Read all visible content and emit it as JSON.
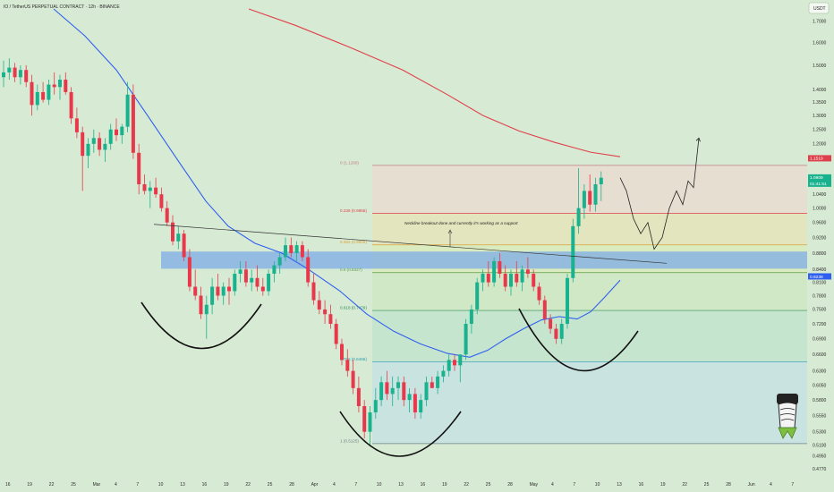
{
  "header": {
    "title": "IO / TetherUS PERPETUAL CONTRACT · 12h · BINANCE",
    "currency": "USDT"
  },
  "colors": {
    "background": "#d7ead3",
    "up_candle": "#19b28f",
    "down_candle": "#e8394c",
    "ma_red": "#e0404a",
    "ma_blue": "#2f5ff0",
    "demand_zone": "#7aa9e6",
    "curve": "#111111"
  },
  "chart_data": {
    "type": "candlestick",
    "symbol": "IO / TetherUS PERPETUAL CONTRACT",
    "interval": "12h",
    "exchange": "BINANCE",
    "y_axis": {
      "scale": "log",
      "ticks": [
        "1.7000",
        "1.6000",
        "1.5000",
        "1.4000",
        "1.3500",
        "1.3000",
        "1.2500",
        "1.2000",
        "1.1500",
        "1.0400",
        "1.0000",
        "0.9600",
        "0.9200",
        "0.8800",
        "0.8400",
        "0.8100",
        "0.7800",
        "0.7500",
        "0.7200",
        "0.6900",
        "0.6600",
        "0.6300",
        "0.6050",
        "0.5800",
        "0.5550",
        "0.5300",
        "0.5100",
        "0.4950",
        "0.4770"
      ]
    },
    "x_axis": {
      "ticks": [
        "16",
        "19",
        "22",
        "25",
        "Mar",
        "4",
        "7",
        "10",
        "13",
        "16",
        "19",
        "22",
        "25",
        "28",
        "Apr",
        "4",
        "7",
        "10",
        "13",
        "16",
        "19",
        "22",
        "25",
        "28",
        "May",
        "4",
        "7",
        "10",
        "13",
        "16",
        "19",
        "22",
        "25",
        "28",
        "Jun",
        "4",
        "7"
      ]
    },
    "price_tags": [
      {
        "label": "1.1519",
        "value": 1.1519,
        "color": "#e0404a"
      },
      {
        "label": "1.0909",
        "value": 1.0909,
        "color": "#19b28f",
        "sub": "01:41:51"
      },
      {
        "label": "0.8238",
        "value": 0.8238,
        "color": "#2f5ff0"
      }
    ],
    "fib_levels": [
      {
        "label": "0 (1.1290)",
        "value": 1.129,
        "color": "#c27e84"
      },
      {
        "label": "0.236 (0.9855)",
        "value": 0.9855,
        "color": "#e0404a"
      },
      {
        "label": "0.382 (0.9009)",
        "value": 0.9009,
        "color": "#d9a43a"
      },
      {
        "label": "0.5 (0.8327)",
        "value": 0.8327,
        "color": "#5b9b44"
      },
      {
        "label": "0.618 (0.7479)",
        "value": 0.7479,
        "color": "#2e8b57"
      },
      {
        "label": "0.786 (0.6465)",
        "value": 0.6465,
        "color": "#2a9bb0"
      },
      {
        "label": "1 (0.5125)",
        "value": 0.5125,
        "color": "#6f7f86"
      }
    ],
    "demand_zone": {
      "low": 0.842,
      "high": 0.884
    },
    "annotations": [
      "Neckline breakout done and currently it's working as a support"
    ],
    "candles": [
      [
        1.45,
        1.52,
        1.41,
        1.47
      ],
      [
        1.47,
        1.53,
        1.44,
        1.49
      ],
      [
        1.49,
        1.51,
        1.43,
        1.45
      ],
      [
        1.45,
        1.5,
        1.42,
        1.48
      ],
      [
        1.48,
        1.5,
        1.41,
        1.43
      ],
      [
        1.43,
        1.46,
        1.3,
        1.34
      ],
      [
        1.34,
        1.42,
        1.32,
        1.39
      ],
      [
        1.39,
        1.43,
        1.35,
        1.36
      ],
      [
        1.36,
        1.44,
        1.34,
        1.42
      ],
      [
        1.42,
        1.47,
        1.38,
        1.41
      ],
      [
        1.41,
        1.46,
        1.36,
        1.44
      ],
      [
        1.44,
        1.47,
        1.38,
        1.39
      ],
      [
        1.39,
        1.41,
        1.27,
        1.29
      ],
      [
        1.29,
        1.33,
        1.22,
        1.24
      ],
      [
        1.24,
        1.26,
        1.05,
        1.16
      ],
      [
        1.16,
        1.22,
        1.12,
        1.2
      ],
      [
        1.2,
        1.25,
        1.17,
        1.22
      ],
      [
        1.22,
        1.24,
        1.16,
        1.18
      ],
      [
        1.18,
        1.22,
        1.14,
        1.2
      ],
      [
        1.2,
        1.27,
        1.18,
        1.25
      ],
      [
        1.25,
        1.29,
        1.21,
        1.23
      ],
      [
        1.23,
        1.27,
        1.2,
        1.26
      ],
      [
        1.26,
        1.43,
        1.24,
        1.38
      ],
      [
        1.38,
        1.42,
        1.15,
        1.17
      ],
      [
        1.17,
        1.2,
        1.04,
        1.07
      ],
      [
        1.07,
        1.1,
        1.04,
        1.05
      ],
      [
        1.05,
        1.08,
        1.0,
        1.06
      ],
      [
        1.06,
        1.09,
        1.03,
        1.04
      ],
      [
        1.04,
        1.06,
        0.99,
        1.0
      ],
      [
        1.0,
        1.02,
        0.95,
        0.96
      ],
      [
        0.96,
        0.98,
        0.9,
        0.91
      ],
      [
        0.91,
        0.95,
        0.89,
        0.93
      ],
      [
        0.93,
        0.94,
        0.86,
        0.87
      ],
      [
        0.87,
        0.89,
        0.79,
        0.8
      ],
      [
        0.8,
        0.84,
        0.77,
        0.78
      ],
      [
        0.78,
        0.8,
        0.73,
        0.74
      ],
      [
        0.74,
        0.78,
        0.69,
        0.76
      ],
      [
        0.76,
        0.82,
        0.74,
        0.8
      ],
      [
        0.8,
        0.83,
        0.77,
        0.78
      ],
      [
        0.78,
        0.81,
        0.76,
        0.8
      ],
      [
        0.8,
        0.82,
        0.76,
        0.79
      ],
      [
        0.79,
        0.84,
        0.78,
        0.83
      ],
      [
        0.83,
        0.86,
        0.81,
        0.84
      ],
      [
        0.84,
        0.86,
        0.8,
        0.81
      ],
      [
        0.81,
        0.84,
        0.79,
        0.82
      ],
      [
        0.82,
        0.85,
        0.79,
        0.8
      ],
      [
        0.8,
        0.82,
        0.78,
        0.79
      ],
      [
        0.79,
        0.84,
        0.78,
        0.83
      ],
      [
        0.83,
        0.86,
        0.81,
        0.85
      ],
      [
        0.85,
        0.88,
        0.83,
        0.87
      ],
      [
        0.87,
        0.92,
        0.86,
        0.9
      ],
      [
        0.9,
        0.92,
        0.87,
        0.88
      ],
      [
        0.88,
        0.91,
        0.86,
        0.9
      ],
      [
        0.9,
        0.91,
        0.86,
        0.87
      ],
      [
        0.87,
        0.89,
        0.8,
        0.81
      ],
      [
        0.81,
        0.83,
        0.76,
        0.77
      ],
      [
        0.77,
        0.79,
        0.74,
        0.75
      ],
      [
        0.75,
        0.77,
        0.72,
        0.74
      ],
      [
        0.74,
        0.76,
        0.71,
        0.72
      ],
      [
        0.72,
        0.73,
        0.67,
        0.68
      ],
      [
        0.68,
        0.69,
        0.64,
        0.65
      ],
      [
        0.65,
        0.67,
        0.62,
        0.63
      ],
      [
        0.63,
        0.65,
        0.59,
        0.6
      ],
      [
        0.6,
        0.62,
        0.56,
        0.57
      ],
      [
        0.57,
        0.58,
        0.52,
        0.53
      ],
      [
        0.53,
        0.57,
        0.51,
        0.56
      ],
      [
        0.56,
        0.6,
        0.55,
        0.58
      ],
      [
        0.58,
        0.62,
        0.57,
        0.61
      ],
      [
        0.61,
        0.63,
        0.58,
        0.59
      ],
      [
        0.59,
        0.62,
        0.57,
        0.6
      ],
      [
        0.6,
        0.62,
        0.58,
        0.61
      ],
      [
        0.61,
        0.62,
        0.57,
        0.58
      ],
      [
        0.58,
        0.6,
        0.56,
        0.59
      ],
      [
        0.59,
        0.6,
        0.55,
        0.56
      ],
      [
        0.56,
        0.59,
        0.55,
        0.58
      ],
      [
        0.58,
        0.62,
        0.57,
        0.61
      ],
      [
        0.61,
        0.62,
        0.6,
        0.6
      ],
      [
        0.6,
        0.63,
        0.59,
        0.62
      ],
      [
        0.62,
        0.64,
        0.61,
        0.63
      ],
      [
        0.63,
        0.66,
        0.62,
        0.65
      ],
      [
        0.65,
        0.66,
        0.63,
        0.64
      ],
      [
        0.64,
        0.66,
        0.61,
        0.66
      ],
      [
        0.66,
        0.73,
        0.65,
        0.72
      ],
      [
        0.72,
        0.76,
        0.7,
        0.75
      ],
      [
        0.75,
        0.82,
        0.74,
        0.81
      ],
      [
        0.81,
        0.84,
        0.79,
        0.83
      ],
      [
        0.83,
        0.86,
        0.8,
        0.81
      ],
      [
        0.81,
        0.87,
        0.8,
        0.86
      ],
      [
        0.86,
        0.88,
        0.82,
        0.83
      ],
      [
        0.83,
        0.85,
        0.79,
        0.8
      ],
      [
        0.8,
        0.84,
        0.78,
        0.83
      ],
      [
        0.83,
        0.86,
        0.8,
        0.81
      ],
      [
        0.81,
        0.85,
        0.79,
        0.84
      ],
      [
        0.84,
        0.87,
        0.82,
        0.83
      ],
      [
        0.83,
        0.84,
        0.79,
        0.8
      ],
      [
        0.8,
        0.81,
        0.76,
        0.77
      ],
      [
        0.77,
        0.78,
        0.72,
        0.73
      ],
      [
        0.73,
        0.74,
        0.7,
        0.71
      ],
      [
        0.71,
        0.72,
        0.68,
        0.69
      ],
      [
        0.69,
        0.73,
        0.68,
        0.72
      ],
      [
        0.72,
        0.83,
        0.71,
        0.82
      ],
      [
        0.82,
        0.97,
        0.81,
        0.95
      ],
      [
        0.95,
        1.12,
        0.93,
        1.0
      ],
      [
        1.0,
        1.07,
        0.97,
        1.05
      ],
      [
        1.05,
        1.1,
        0.99,
        1.01
      ],
      [
        1.01,
        1.09,
        0.99,
        1.07
      ],
      [
        1.07,
        1.11,
        1.02,
        1.09
      ]
    ]
  }
}
